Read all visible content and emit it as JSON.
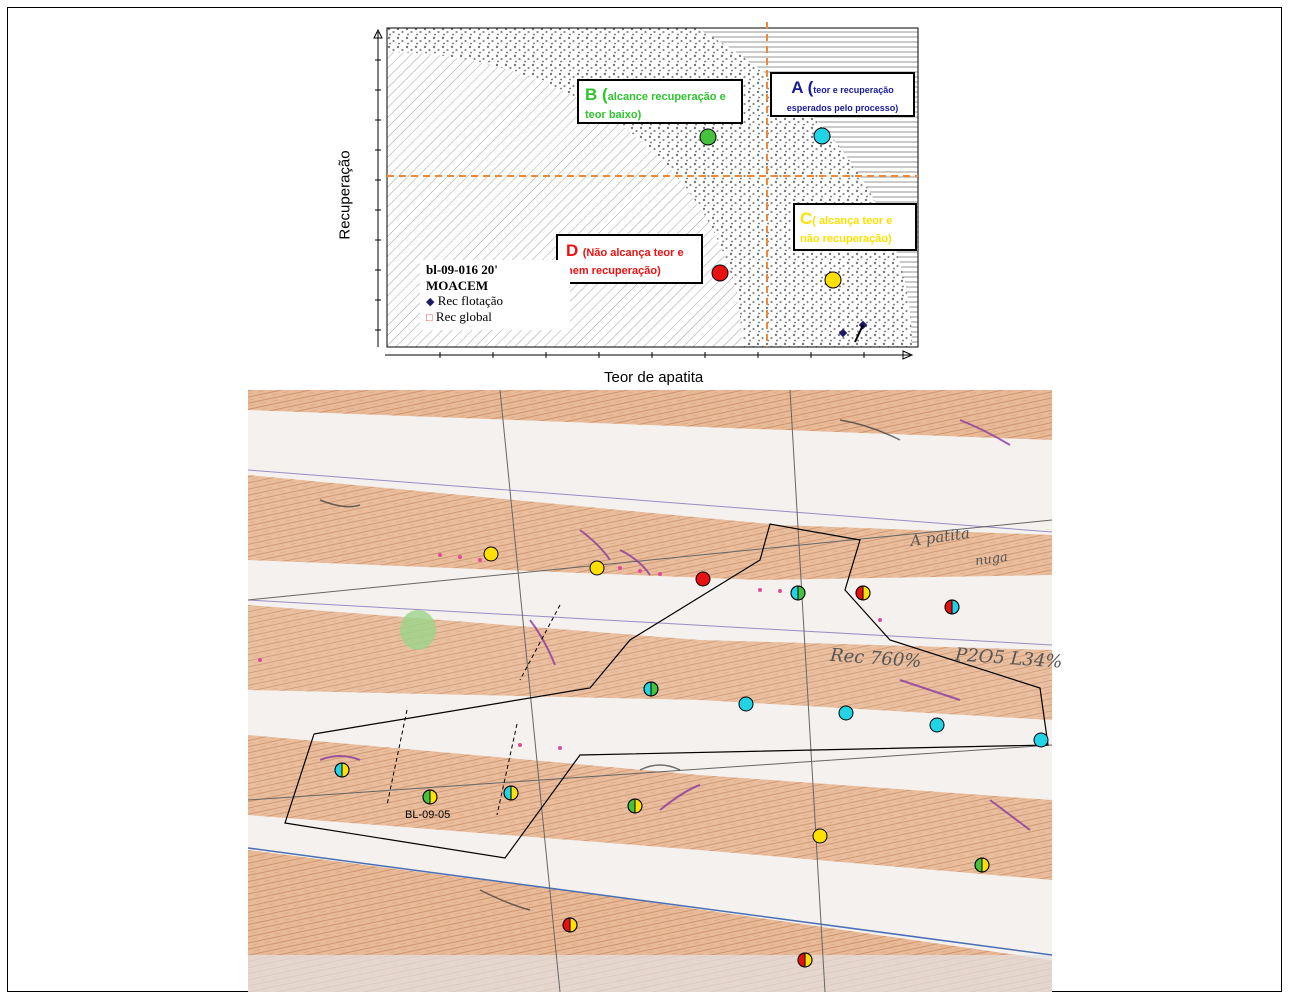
{
  "chart": {
    "y_axis_label": "Recuperação",
    "x_axis_label": "Teor de apatita",
    "quadrants": {
      "A": {
        "letter": "A (",
        "text": "teor e recuperação esperados pelo processo)"
      },
      "B": {
        "letter": "B (",
        "text": "alcance recuperação e teor baixo)"
      },
      "C": {
        "letter": "C",
        "text": "( alcança teor e não recuperação)"
      },
      "D": {
        "letter": "D",
        "text": "(Não alcança teor e nem recuperação)"
      }
    },
    "legend": {
      "title_line1": "bl-09-016 20'",
      "title_line2": "MOACEM",
      "item1": "Rec flotação",
      "item2": "Rec global"
    }
  },
  "map": {
    "sample_label": "BL-09-05",
    "handwritten": {
      "note1": "A patita",
      "note2": "nuga",
      "note3": "Rec 760%",
      "note4": "P2O5 L34%"
    }
  },
  "colors": {
    "A_cyan": "#22d3e6",
    "B_green": "#44c23c",
    "C_yellow": "#ffe000",
    "D_red": "#e81010",
    "guide_line": "#f0883a"
  }
}
